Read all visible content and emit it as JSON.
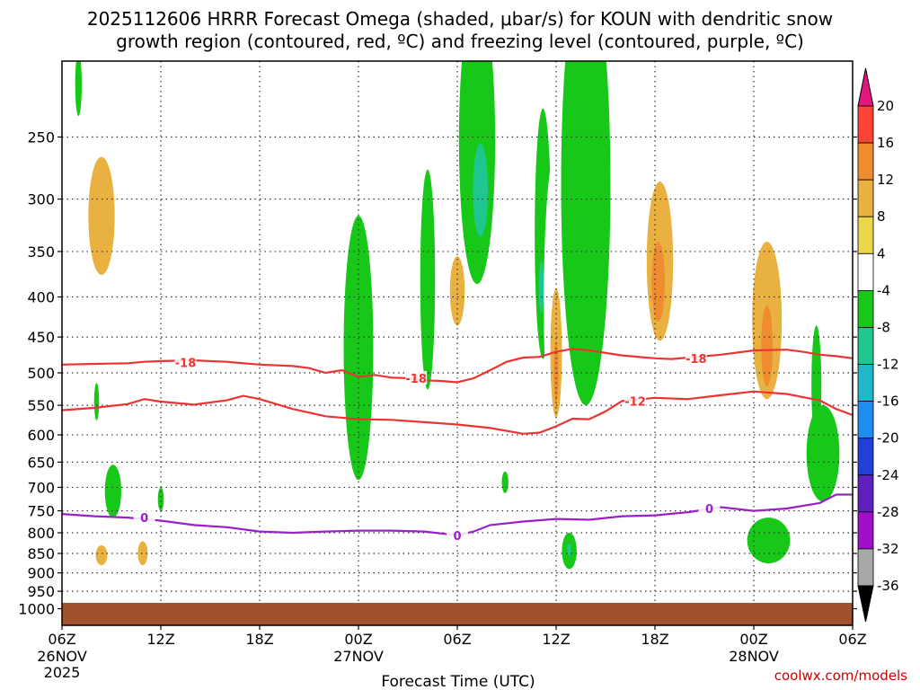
{
  "chart_data": {
    "type": "heatmap",
    "title_line1": "2025112606 HRRR Forecast Omega (shaded, μbar/s) for KOUN with dendritic snow",
    "title_line2": "growth region (contoured, red, ºC) and freezing level (contoured, purple, ºC)",
    "xlabel": "Forecast Time (UTC)",
    "credit": "coolwx.com/models",
    "x_range_hours": [
      0,
      48
    ],
    "y_range_hpa": [
      200,
      1050
    ],
    "grid": true,
    "x_ticks": [
      {
        "hour": 0,
        "label": "06Z",
        "sub1": "26NOV",
        "sub2": "2025"
      },
      {
        "hour": 6,
        "label": "12Z",
        "sub1": "",
        "sub2": ""
      },
      {
        "hour": 12,
        "label": "18Z",
        "sub1": "",
        "sub2": ""
      },
      {
        "hour": 18,
        "label": "00Z",
        "sub1": "27NOV",
        "sub2": ""
      },
      {
        "hour": 24,
        "label": "06Z",
        "sub1": "",
        "sub2": ""
      },
      {
        "hour": 30,
        "label": "12Z",
        "sub1": "",
        "sub2": ""
      },
      {
        "hour": 36,
        "label": "18Z",
        "sub1": "",
        "sub2": ""
      },
      {
        "hour": 42,
        "label": "00Z",
        "sub1": "28NOV",
        "sub2": ""
      },
      {
        "hour": 48,
        "label": "06Z",
        "sub1": "",
        "sub2": ""
      }
    ],
    "y_ticks": [
      250,
      300,
      350,
      400,
      450,
      500,
      550,
      600,
      650,
      700,
      750,
      800,
      850,
      900,
      950,
      1000
    ],
    "colorbar": {
      "labels": [
        "20",
        "16",
        "12",
        "8",
        "4",
        "-4",
        "-8",
        "-12",
        "-16",
        "-20",
        "-24",
        "-28",
        "-32",
        "-36"
      ],
      "bins": [
        {
          "range": [
            16,
            20
          ],
          "color": "#ff4433"
        },
        {
          "range": [
            12,
            16
          ],
          "color": "#f08c30"
        },
        {
          "range": [
            8,
            12
          ],
          "color": "#e9b13f"
        },
        {
          "range": [
            4,
            8
          ],
          "color": "#ebd84a"
        },
        {
          "range": [
            -4,
            4
          ],
          "color": "#ffffff"
        },
        {
          "range": [
            -8,
            -4
          ],
          "color": "#18c818"
        },
        {
          "range": [
            -12,
            -8
          ],
          "color": "#20c690"
        },
        {
          "range": [
            -16,
            -12
          ],
          "color": "#20b8c8"
        },
        {
          "range": [
            -20,
            -16
          ],
          "color": "#1e8cf0"
        },
        {
          "range": [
            -24,
            -20
          ],
          "color": "#2040d8"
        },
        {
          "range": [
            -28,
            -24
          ],
          "color": "#6020c0"
        },
        {
          "range": [
            -32,
            -28
          ],
          "color": "#a010c8"
        },
        {
          "range": [
            -36,
            -32
          ],
          "color": "#a8a8a8"
        }
      ],
      "top_arrow_color": "#e01880",
      "bottom_arrow_color": "#000000"
    },
    "surface_color": "#a0522d",
    "surface_pressure_hpa": 983,
    "contours": [
      {
        "label": "-18",
        "color": "#ee3333",
        "points": [
          [
            0,
            488
          ],
          [
            2,
            487
          ],
          [
            4,
            486
          ],
          [
            5,
            484
          ],
          [
            6,
            483
          ],
          [
            8,
            482
          ],
          [
            10,
            484
          ],
          [
            12,
            488
          ],
          [
            14,
            490
          ],
          [
            15,
            493
          ],
          [
            16,
            500
          ],
          [
            17,
            496
          ],
          [
            18,
            506
          ],
          [
            19,
            503
          ],
          [
            20,
            507
          ],
          [
            21,
            508
          ],
          [
            22,
            511
          ],
          [
            23,
            512
          ],
          [
            24,
            514
          ],
          [
            25,
            508
          ],
          [
            26,
            496
          ],
          [
            27,
            484
          ],
          [
            28,
            478
          ],
          [
            29,
            477
          ],
          [
            30,
            470
          ],
          [
            31,
            466
          ],
          [
            32,
            468
          ],
          [
            34,
            475
          ],
          [
            36,
            479
          ],
          [
            37,
            480
          ],
          [
            38,
            478
          ],
          [
            40,
            474
          ],
          [
            42,
            468
          ],
          [
            44,
            467
          ],
          [
            45,
            470
          ],
          [
            46,
            474
          ],
          [
            47,
            476
          ],
          [
            48,
            479
          ]
        ],
        "label_positions": [
          [
            7.5,
            485
          ],
          [
            21.5,
            508
          ],
          [
            38.5,
            479
          ]
        ]
      },
      {
        "label": "-12",
        "color": "#ee3333",
        "points": [
          [
            0,
            558
          ],
          [
            2,
            554
          ],
          [
            4,
            548
          ],
          [
            5,
            540
          ],
          [
            6,
            544
          ],
          [
            8,
            549
          ],
          [
            10,
            542
          ],
          [
            11,
            535
          ],
          [
            12,
            540
          ],
          [
            14,
            556
          ],
          [
            16,
            568
          ],
          [
            18,
            573
          ],
          [
            20,
            574
          ],
          [
            22,
            578
          ],
          [
            24,
            582
          ],
          [
            26,
            588
          ],
          [
            28,
            598
          ],
          [
            29,
            596
          ],
          [
            30,
            585
          ],
          [
            31,
            572
          ],
          [
            32,
            573
          ],
          [
            33,
            560
          ],
          [
            34,
            543
          ],
          [
            36,
            538
          ],
          [
            38,
            540
          ],
          [
            40,
            534
          ],
          [
            42,
            528
          ],
          [
            44,
            532
          ],
          [
            46,
            542
          ],
          [
            47,
            556
          ],
          [
            48,
            566
          ]
        ],
        "label_positions": [
          [
            34.8,
            543
          ]
        ]
      },
      {
        "label": "0",
        "color": "#9a20c8",
        "points": [
          [
            0,
            757
          ],
          [
            2,
            762
          ],
          [
            4,
            765
          ],
          [
            6,
            772
          ],
          [
            8,
            782
          ],
          [
            10,
            787
          ],
          [
            12,
            797
          ],
          [
            14,
            800
          ],
          [
            16,
            797
          ],
          [
            18,
            795
          ],
          [
            20,
            795
          ],
          [
            22,
            797
          ],
          [
            24,
            806
          ],
          [
            25,
            797
          ],
          [
            26,
            782
          ],
          [
            28,
            774
          ],
          [
            30,
            768
          ],
          [
            32,
            770
          ],
          [
            34,
            762
          ],
          [
            36,
            760
          ],
          [
            38,
            753
          ],
          [
            40,
            742
          ],
          [
            42,
            750
          ],
          [
            44,
            745
          ],
          [
            46,
            733
          ],
          [
            47,
            715
          ],
          [
            48,
            715
          ]
        ],
        "label_positions": [
          [
            5,
            765
          ],
          [
            24,
            806
          ],
          [
            39.3,
            745
          ]
        ]
      }
    ],
    "omega_regions": [
      {
        "bin": "4",
        "center": [
          2.6,
          320
        ],
        "rx_h": 1.75,
        "ry_hpa": 150
      },
      {
        "bin": "4",
        "center": [
          1.2,
          500
        ],
        "rx_h": 0.6,
        "ry_hpa": 140
      },
      {
        "bin": "8",
        "center": [
          2.4,
          320
        ],
        "rx_h": 0.8,
        "ry_hpa": 55
      },
      {
        "bin": "4",
        "center": [
          7.1,
          282
        ],
        "rx_h": 0.18,
        "ry_hpa": 20
      },
      {
        "bin": "4",
        "center": [
          3.0,
          835
        ],
        "rx_h": 2.0,
        "ry_hpa": 75
      },
      {
        "bin": "4",
        "center": [
          4.9,
          820
        ],
        "rx_h": 0.7,
        "ry_hpa": 60
      },
      {
        "bin": "8",
        "center": [
          2.4,
          855
        ],
        "rx_h": 0.35,
        "ry_hpa": 25
      },
      {
        "bin": "8",
        "center": [
          4.9,
          850
        ],
        "rx_h": 0.3,
        "ry_hpa": 30
      },
      {
        "bin": "4",
        "center": [
          7.3,
          870
        ],
        "rx_h": 0.8,
        "ry_hpa": 35
      },
      {
        "bin": "-4",
        "center": [
          1.0,
          215
        ],
        "rx_h": 0.2,
        "ry_hpa": 20
      },
      {
        "bin": "-4",
        "center": [
          2.1,
          545
        ],
        "rx_h": 0.15,
        "ry_hpa": 30
      },
      {
        "bin": "-4",
        "center": [
          3.1,
          710
        ],
        "rx_h": 0.5,
        "ry_hpa": 55
      },
      {
        "bin": "-4",
        "center": [
          6.0,
          725
        ],
        "rx_h": 0.18,
        "ry_hpa": 25
      },
      {
        "bin": "-4",
        "center": [
          18.0,
          500
        ],
        "rx_h": 0.9,
        "ry_hpa": 185
      },
      {
        "bin": "-4",
        "center": [
          22.2,
          400
        ],
        "rx_h": 0.45,
        "ry_hpa": 125
      },
      {
        "bin": "4",
        "center": [
          24.0,
          400
        ],
        "rx_h": 1.0,
        "ry_hpa": 80
      },
      {
        "bin": "8",
        "center": [
          24.0,
          395
        ],
        "rx_h": 0.45,
        "ry_hpa": 40
      },
      {
        "bin": "-4",
        "center": [
          25.2,
          275
        ],
        "rx_h": 1.1,
        "ry_hpa": 110
      },
      {
        "bin": "-8",
        "center": [
          25.4,
          295
        ],
        "rx_h": 0.45,
        "ry_hpa": 40
      },
      {
        "bin": "4",
        "center": [
          27.1,
          418
        ],
        "rx_h": 0.5,
        "ry_hpa": 55
      },
      {
        "bin": "-4",
        "center": [
          26.9,
          690
        ],
        "rx_h": 0.2,
        "ry_hpa": 22
      },
      {
        "bin": "-4",
        "center": [
          29.2,
          355
        ],
        "rx_h": 0.5,
        "ry_hpa": 125
      },
      {
        "bin": "-8",
        "center": [
          29.1,
          390
        ],
        "rx_h": 0.15,
        "ry_hpa": 30
      },
      {
        "bin": "4",
        "center": [
          30.0,
          450
        ],
        "rx_h": 0.75,
        "ry_hpa": 190
      },
      {
        "bin": "8",
        "center": [
          30.0,
          480
        ],
        "rx_h": 0.35,
        "ry_hpa": 90
      },
      {
        "bin": "12",
        "center": [
          30.0,
          500
        ],
        "rx_h": 0.15,
        "ry_hpa": 45
      },
      {
        "bin": "-4",
        "center": [
          31.8,
          350
        ],
        "rx_h": 1.5,
        "ry_hpa": 200
      },
      {
        "bin": "-4",
        "center": [
          30.8,
          845
        ],
        "rx_h": 0.45,
        "ry_hpa": 45
      },
      {
        "bin": "-8",
        "center": [
          30.8,
          840
        ],
        "rx_h": 0.12,
        "ry_hpa": 15
      },
      {
        "bin": "4",
        "center": [
          32.8,
          770
        ],
        "rx_h": 0.55,
        "ry_hpa": 55
      },
      {
        "bin": "4",
        "center": [
          33.0,
          955
        ],
        "rx_h": 0.95,
        "ry_hpa": 20
      },
      {
        "bin": "4",
        "center": [
          36.4,
          360
        ],
        "rx_h": 1.4,
        "ry_hpa": 190
      },
      {
        "bin": "8",
        "center": [
          36.3,
          370
        ],
        "rx_h": 0.8,
        "ry_hpa": 85
      },
      {
        "bin": "12",
        "center": [
          36.2,
          385
        ],
        "rx_h": 0.4,
        "ry_hpa": 45
      },
      {
        "bin": "4",
        "center": [
          38.4,
          500
        ],
        "rx_h": 0.6,
        "ry_hpa": 170
      },
      {
        "bin": "4",
        "center": [
          39.9,
          330
        ],
        "rx_h": 0.4,
        "ry_hpa": 50
      },
      {
        "bin": "4",
        "center": [
          42.8,
          420
        ],
        "rx_h": 1.9,
        "ry_hpa": 180
      },
      {
        "bin": "8",
        "center": [
          42.8,
          440
        ],
        "rx_h": 0.9,
        "ry_hpa": 100
      },
      {
        "bin": "12",
        "center": [
          42.8,
          465
        ],
        "rx_h": 0.35,
        "ry_hpa": 55
      },
      {
        "bin": "-4",
        "center": [
          42.9,
          820
        ],
        "rx_h": 1.3,
        "ry_hpa": 55
      },
      {
        "bin": "4",
        "center": [
          44.0,
          935
        ],
        "rx_h": 1.8,
        "ry_hpa": 30
      },
      {
        "bin": "4",
        "center": [
          41.3,
          950
        ],
        "rx_h": 0.5,
        "ry_hpa": 15
      },
      {
        "bin": "-4",
        "center": [
          45.8,
          525
        ],
        "rx_h": 0.3,
        "ry_hpa": 90
      },
      {
        "bin": "-4",
        "center": [
          46.2,
          640
        ],
        "rx_h": 1.0,
        "ry_hpa": 90
      }
    ]
  }
}
